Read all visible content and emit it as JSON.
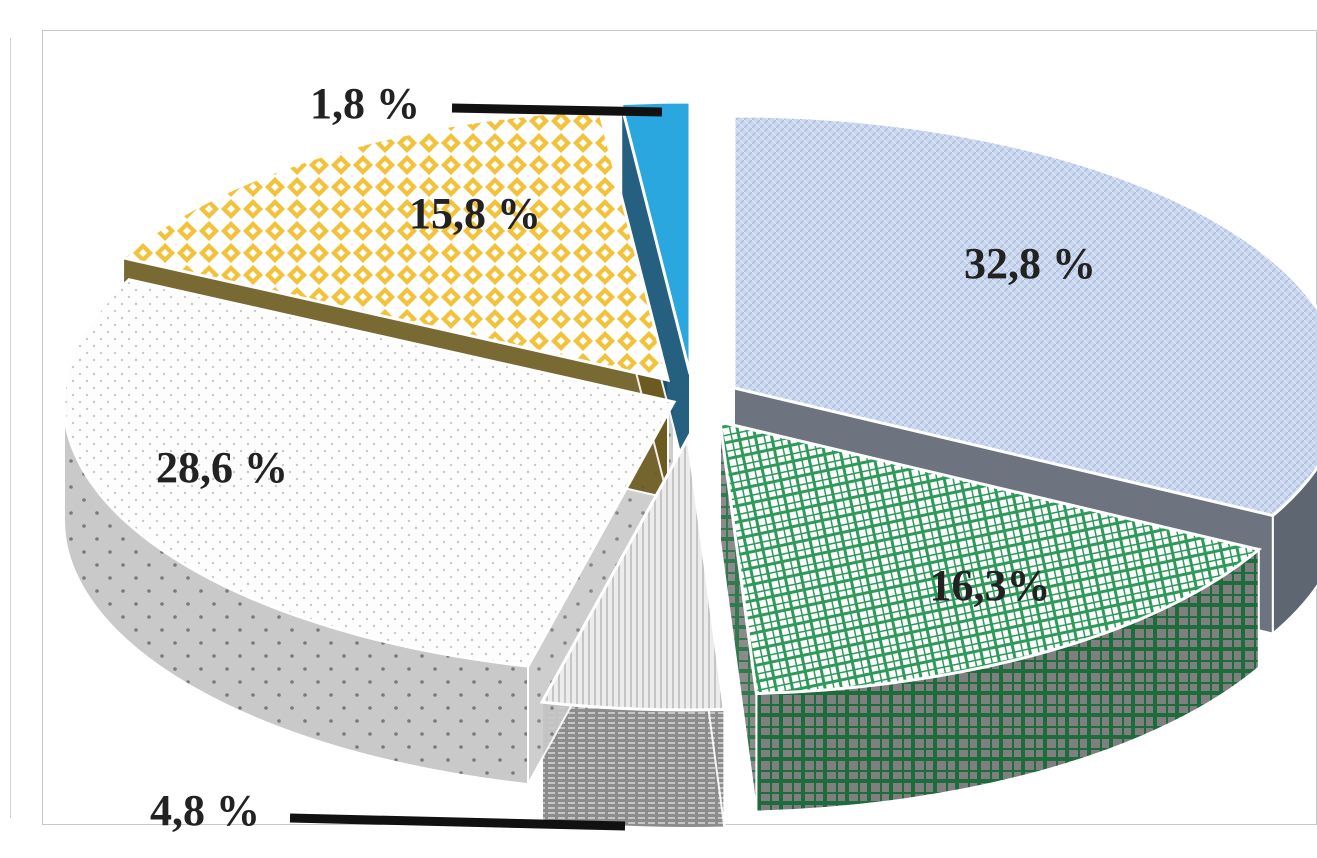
{
  "chart_data": {
    "type": "pie",
    "style": "3d-exploded",
    "title": "",
    "legend": "none",
    "start_angle_deg": 0,
    "direction": "clockwise",
    "slices": [
      {
        "label": "32,8 %",
        "value": 32.8,
        "color": "#c5d3ec",
        "pattern": "pat-fine"
      },
      {
        "label": "16,3%",
        "value": 16.3,
        "color": "#2e9a5a",
        "pattern": "pat-grid"
      },
      {
        "label": "4,8 %",
        "value": 4.8,
        "color": "#a8a8a8",
        "pattern": "pat-vert"
      },
      {
        "label": "28,6 %",
        "value": 28.6,
        "color": "#bdbdbd",
        "pattern": "pat-dots"
      },
      {
        "label": "15,8 %",
        "value": 15.8,
        "color": "#f2c23a",
        "pattern": "pat-diamond"
      },
      {
        "label": "1,8 %",
        "value": 1.8,
        "color": "#2aa7de",
        "pattern": "pat-solid"
      }
    ]
  },
  "colors": {
    "background": "#ffffff",
    "frame_border": "#c8c8c8",
    "label_text": "#222222",
    "leader_line": "#111111"
  }
}
